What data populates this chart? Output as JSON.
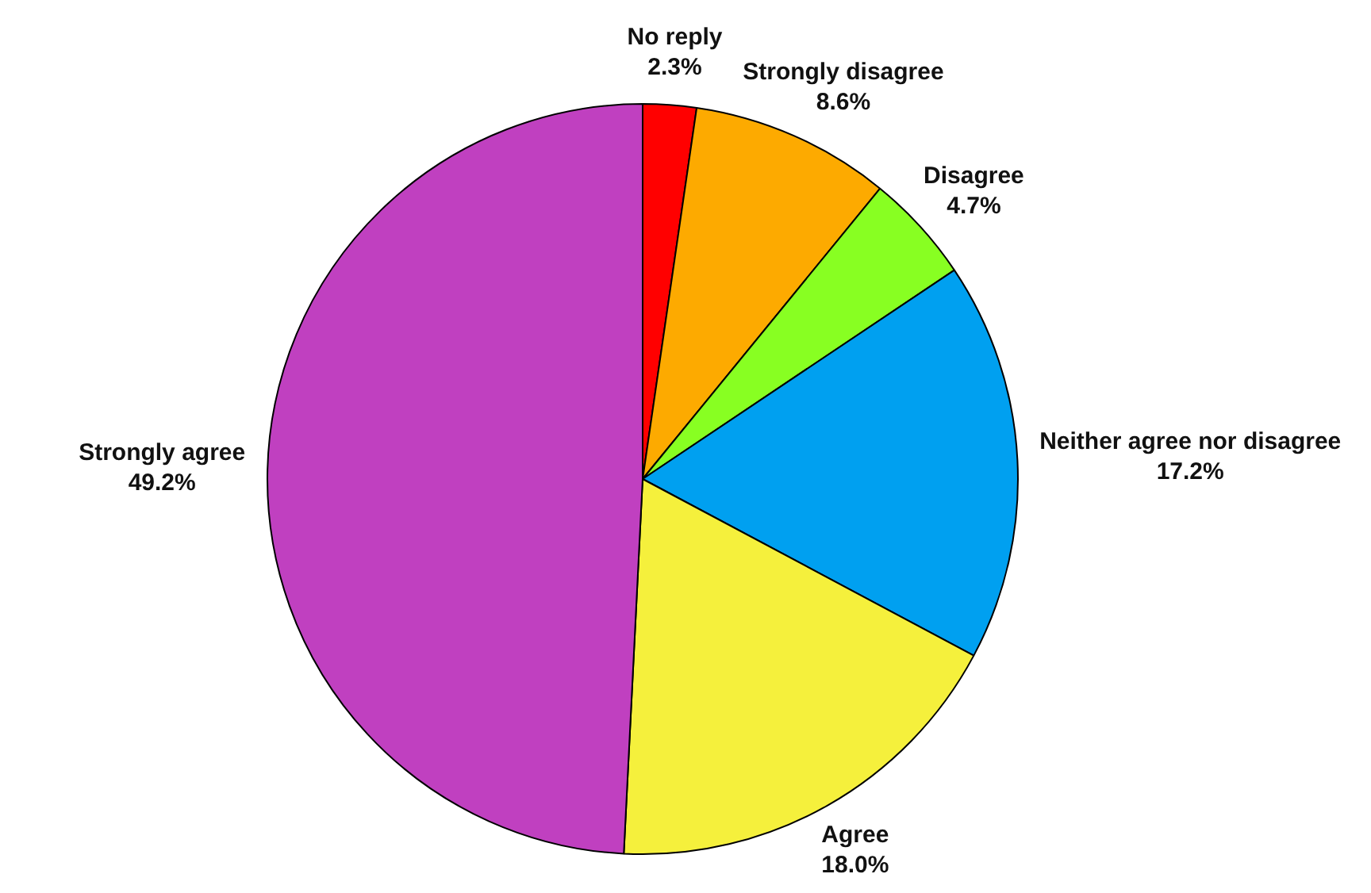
{
  "chart_data": {
    "type": "pie",
    "categories": [
      "No reply",
      "Strongly disagree",
      "Disagree",
      "Neither agree nor disagree",
      "Agree",
      "Strongly agree"
    ],
    "values": [
      2.3,
      8.6,
      4.7,
      17.2,
      18.0,
      49.2
    ],
    "value_labels": [
      "2.3%",
      "8.6%",
      "4.7%",
      "17.2%",
      "18.0%",
      "49.2%"
    ],
    "colors": [
      "#ff0000",
      "#fdaa00",
      "#88ff22",
      "#00a0f0",
      "#f5f03c",
      "#c040c0"
    ],
    "legend": false
  }
}
